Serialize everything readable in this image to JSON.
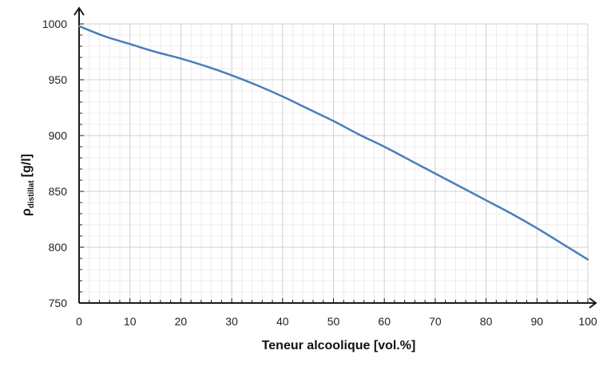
{
  "chart_data": {
    "type": "line",
    "title": "",
    "xlabel": "Teneur alcoolique [vol.%]",
    "ylabel": {
      "main": "ρ",
      "subscript": "distillat",
      "unit": "[g/l]"
    },
    "xlim": [
      0,
      100
    ],
    "ylim": [
      750,
      1000
    ],
    "x_ticks": [
      0,
      10,
      20,
      30,
      40,
      50,
      60,
      70,
      80,
      90,
      100
    ],
    "y_ticks": [
      750,
      800,
      850,
      900,
      950,
      1000
    ],
    "x_tick_labels": [
      "0",
      "10",
      "20",
      "30",
      "40",
      "50",
      "60",
      "70",
      "80",
      "90",
      "100"
    ],
    "y_tick_labels": [
      "750",
      "800",
      "850",
      "900",
      "950",
      "1000"
    ],
    "grid": true,
    "legend": "none",
    "series": [
      {
        "color": "#4a7ebb",
        "x": [
          0,
          5,
          10,
          15,
          20,
          25,
          30,
          35,
          40,
          45,
          50,
          55,
          60,
          65,
          70,
          75,
          80,
          85,
          90,
          95,
          100
        ],
        "y": [
          998,
          989,
          982,
          975,
          969,
          962,
          954,
          945,
          935,
          924,
          913,
          901,
          890,
          878,
          866,
          854,
          842,
          830,
          817,
          803,
          789
        ]
      }
    ]
  },
  "colors": {
    "line": "#4a7ebb",
    "grid_major": "#d0d0d0",
    "grid_minor": "#ececec",
    "axis": "#1a1a1a"
  }
}
